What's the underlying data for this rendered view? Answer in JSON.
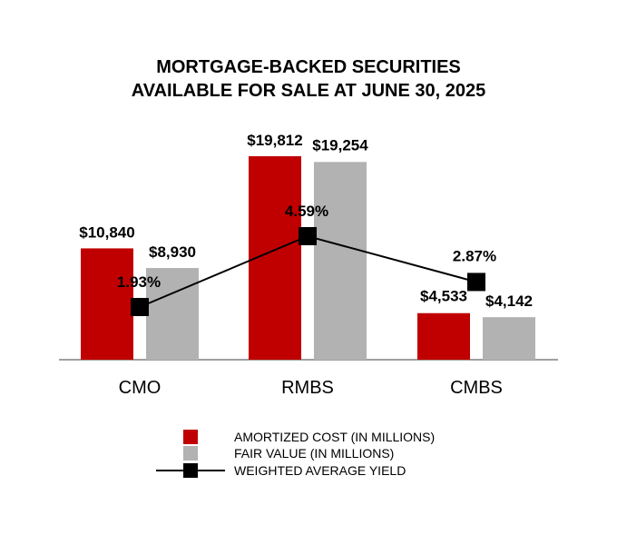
{
  "chart_data": {
    "type": "bar",
    "title": "MORTGAGE-BACKED SECURITIES",
    "subtitle": "AVAILABLE FOR SALE AT JUNE 30, 2025",
    "categories": [
      "CMO",
      "RMBS",
      "CMBS"
    ],
    "series": [
      {
        "name": "AMORTIZED COST (IN MILLIONS)",
        "type": "bar",
        "color": "#c00000",
        "values": [
          10840,
          19812,
          4533
        ],
        "labels": [
          "$10,840",
          "$19,812",
          "$4,533"
        ]
      },
      {
        "name": "FAIR VALUE (IN MILLIONS)",
        "type": "bar",
        "color": "#b2b2b2",
        "values": [
          8930,
          19254,
          4142
        ],
        "labels": [
          "$8,930",
          "$19,254",
          "$4,142"
        ]
      },
      {
        "name": "WEIGHTED AVERAGE YIELD",
        "type": "line",
        "color": "#000000",
        "values": [
          1.93,
          4.59,
          2.87
        ],
        "labels": [
          "1.93%",
          "4.59%",
          "2.87%"
        ]
      }
    ],
    "grid": false,
    "legend": "bottom"
  }
}
